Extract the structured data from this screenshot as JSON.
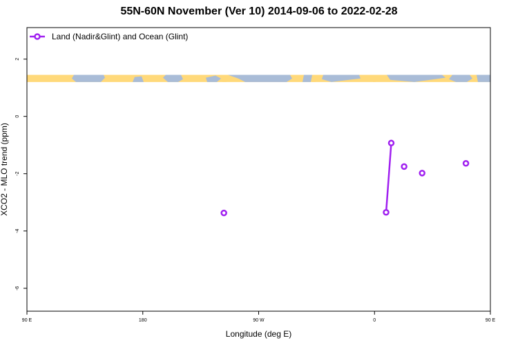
{
  "title": "55N-60N November (Ver 10)   2014-09-06 to 2022-02-28",
  "colors": {
    "series": "#a020f0",
    "land": "#ffd97a",
    "ocean": "#a9bcd7",
    "axis": "#000000"
  },
  "chart_data": {
    "type": "line",
    "title": "55N-60N November (Ver 10)   2014-09-06 to 2022-02-28",
    "xlabel": "Longitude (deg E)",
    "ylabel": "XCO2 - MLO trend (ppm)",
    "xlim": [
      90,
      450
    ],
    "ylim": [
      -6.8,
      3.1
    ],
    "x_ticks": [
      {
        "value": 90,
        "label": "90 E"
      },
      {
        "value": 180,
        "label": "180"
      },
      {
        "value": 270,
        "label": "90 W"
      },
      {
        "value": 360,
        "label": "0"
      },
      {
        "value": 450,
        "label": "90 E"
      }
    ],
    "y_ticks": [
      {
        "value": 2,
        "label": "2"
      },
      {
        "value": 0,
        "label": "0"
      },
      {
        "value": -2,
        "label": "-2"
      },
      {
        "value": -4,
        "label": "-4"
      },
      {
        "value": -6,
        "label": "-6"
      }
    ],
    "legend": {
      "position": "top-left"
    },
    "grid": false,
    "map_band": {
      "y_range": [
        1.2,
        1.45
      ]
    },
    "series": [
      {
        "name": "Land (Nadir&Glint) and Ocean (Glint)",
        "points": [
          {
            "x": 243,
            "y": -3.37
          },
          {
            "x": 369,
            "y": -3.35
          },
          {
            "x": 373,
            "y": -0.93
          },
          {
            "x": 383,
            "y": -1.75
          },
          {
            "x": 397,
            "y": -1.98
          },
          {
            "x": 431,
            "y": -1.64
          }
        ],
        "segments": [
          [
            1,
            2
          ]
        ]
      }
    ]
  }
}
